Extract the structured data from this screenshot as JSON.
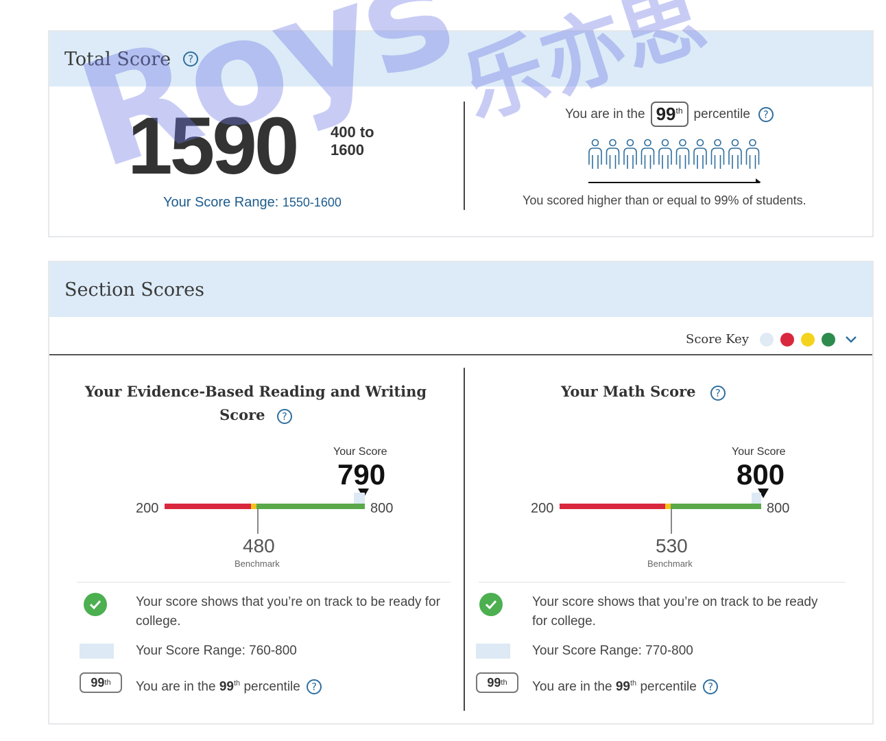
{
  "total": {
    "title": "Total Score",
    "help_glyph": "?",
    "score": "1590",
    "range_line1": "400 to",
    "range_line2": "1600",
    "score_range_label": "Your Score Range:",
    "score_range_value": "1550-1600",
    "percentile_prefix": "You are in the",
    "percentile_value": "99",
    "percentile_suffix_sup": "th",
    "percentile_word": "percentile",
    "people_count": 10,
    "percentile_caption": "You scored higher than or equal to 99% of students."
  },
  "sections": {
    "title": "Section Scores",
    "score_key_label": "Score Key",
    "score_key_colors": [
      "#dfeaf4",
      "#d9273e",
      "#f4d31f",
      "#2e8b4e"
    ],
    "chevron_icon": "chevron-down-icon",
    "reading": {
      "title_line1": "Your Evidence-Based Reading and Writing",
      "title_line2": "Score",
      "your_score_label": "Your Score",
      "score": "790",
      "min": "200",
      "max": "800",
      "benchmark": "480",
      "benchmark_label": "Benchmark",
      "on_track_text": "Your score shows that you’re on track to be ready for college.",
      "range_text": "Your Score Range: 760-800",
      "badge_num": "99",
      "badge_sup": "th",
      "pct_prefix": "You are in the",
      "pct_num": "99",
      "pct_sup": "th",
      "pct_suffix": "percentile"
    },
    "math": {
      "title_line1": "Your Math Score",
      "your_score_label": "Your Score",
      "score": "800",
      "min": "200",
      "max": "800",
      "benchmark": "530",
      "benchmark_label": "Benchmark",
      "on_track_text": "Your score shows that you’re on track to be ready for college.",
      "range_text": "Your Score Range: 770-800",
      "badge_num": "99",
      "badge_sup": "th",
      "pct_prefix": "You are in the",
      "pct_num": "99",
      "pct_sup": "th",
      "pct_suffix": "percentile"
    }
  },
  "watermark": {
    "latin": "Roys",
    "cjk": "乐亦思"
  },
  "colors": {
    "header_bg": "#dcebf7",
    "red": "#d9273e",
    "yellow": "#f4c21f",
    "green": "#5aa84a",
    "link_blue": "#2f6e9e"
  }
}
